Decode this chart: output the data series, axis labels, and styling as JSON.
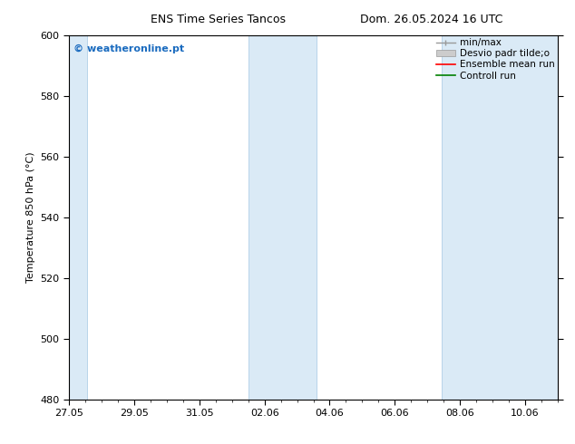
{
  "title_left": "ENS Time Series Tancos",
  "title_right": "Dom. 26.05.2024 16 UTC",
  "ylabel": "Temperature 850 hPa (°C)",
  "ylim": [
    480,
    600
  ],
  "yticks": [
    480,
    500,
    520,
    540,
    560,
    580,
    600
  ],
  "xlim": [
    0,
    15.0
  ],
  "xtick_labels": [
    "27.05",
    "29.05",
    "31.05",
    "02.06",
    "04.06",
    "06.06",
    "08.06",
    "10.06"
  ],
  "xtick_positions_days": [
    0,
    2,
    4,
    6,
    8,
    10,
    12,
    14
  ],
  "shaded_bands": [
    {
      "start_day": -0.05,
      "end_day": 0.55
    },
    {
      "start_day": 5.5,
      "end_day": 7.6
    },
    {
      "start_day": 11.45,
      "end_day": 15.0
    }
  ],
  "band_color": "#daeaf6",
  "band_edge_color": "#b8d4ea",
  "watermark_text": "© weatheronline.pt",
  "watermark_color": "#1a6bbf",
  "bg_color": "#ffffff",
  "font_size": 8,
  "title_font_size": 9,
  "legend_font_size": 7.5
}
